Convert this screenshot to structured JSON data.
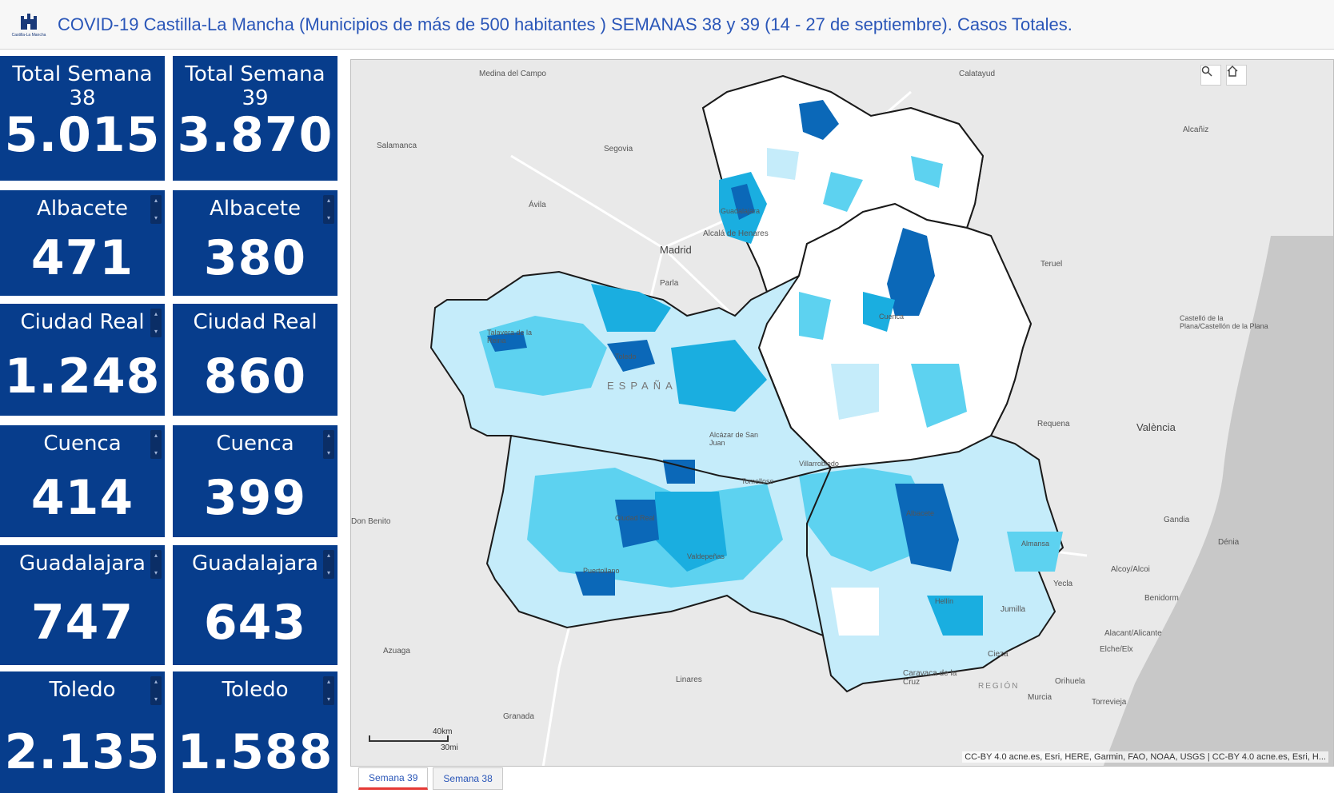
{
  "header": {
    "title": "COVID-19 Castilla-La Mancha (Municipios de más de 500 habitantes ) SEMANAS 38 y 39 (14 - 27 de septiembre). Casos Totales.",
    "logo_text": "Castilla-La Mancha"
  },
  "totals": {
    "week38": {
      "label": "Total Semana 38",
      "value": "5.015"
    },
    "week39": {
      "label": "Total Semana 39",
      "value": "3.870"
    }
  },
  "provinces_week38": [
    {
      "label": "Albacete",
      "value": "471"
    },
    {
      "label": "Ciudad Real",
      "value": "1.248"
    },
    {
      "label": "Cuenca",
      "value": "414"
    },
    {
      "label": "Guadalajara",
      "value": "747"
    },
    {
      "label": "Toledo",
      "value": "2.135"
    }
  ],
  "provinces_week39": [
    {
      "label": "Albacete",
      "value": "380"
    },
    {
      "label": "Ciudad Real",
      "value": "860"
    },
    {
      "label": "Cuenca",
      "value": "399"
    },
    {
      "label": "Guadalajara",
      "value": "643"
    },
    {
      "label": "Toledo",
      "value": "1.588"
    }
  ],
  "scroll_arrows": {
    "up": "▴",
    "down": "▾"
  },
  "map": {
    "places": {
      "medina": "Medina del Campo",
      "calatayud": "Calatayud",
      "salamanca": "Salamanca",
      "segovia": "Segovia",
      "alcaniz": "Alcañiz",
      "avila": "Ávila",
      "alcala": "Alcalá de Henares",
      "madrid": "Madrid",
      "parla": "Parla",
      "teruel": "Teruel",
      "castellon": "Castelló de la Plana/Castellón de la Plana",
      "espana": "ESPAÑA",
      "requena": "Requena",
      "valencia": "València",
      "don_benito": "Don Benito",
      "gandia": "Gandia",
      "denia": "Dénia",
      "alcoy": "Alcoy/Alcoi",
      "yecla": "Yecla",
      "benidorm": "Benidorm",
      "jumilla": "Jumilla",
      "alicante": "Alacant/Alicante",
      "elche": "Elche/Elx",
      "azuaga": "Azuaga",
      "cieza": "Cieza",
      "linares": "Linares",
      "caravaca": "Caravaca de la Cruz",
      "orihuela": "Orihuela",
      "region": "REGIÓN",
      "murcia": "Murcia",
      "torrevieja": "Torrevieja",
      "granada": "Granada",
      "albacete": "Albacete",
      "cuenca": "Cuenca",
      "toledo": "Toledo",
      "talavera": "Talavera de la Reina",
      "guadalajara": "Guadalajara",
      "ciudad_real": "Ciudad Real",
      "puertollano": "Puertollano",
      "valdepenas": "Valdepeñas",
      "alcazar": "Alcázar de San Juan",
      "tomelloso": "Tomelloso",
      "villarrobledo": "Villarrobledo",
      "almansa": "Almansa",
      "hellin": "Hellín"
    },
    "scale_km": "40km",
    "scale_mi": "30mi",
    "attribution": "CC-BY 4.0 acne.es, Esri, HERE, Garmin, FAO, NOAA, USGS | CC-BY 4.0 acne.es, Esri, H...",
    "colors": {
      "land": "#e9e9e9",
      "sea": "#c8c8c8",
      "class1": "#ffffff",
      "class2": "#c5ecfa",
      "class3": "#5dd2f0",
      "class4": "#1aaee0",
      "class5": "#0b68b8",
      "border": "#1a1a1a"
    }
  },
  "tabs": [
    {
      "label": "Semana 39",
      "active": true
    },
    {
      "label": "Semana 38",
      "active": false
    }
  ]
}
